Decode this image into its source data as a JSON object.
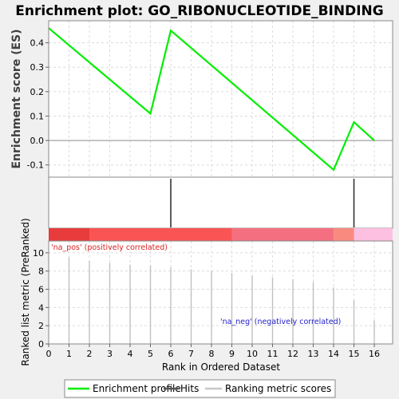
{
  "chart_data": {
    "type": "line",
    "title": "Enrichment plot: GO_RIBONUCLEOTIDE_BINDING",
    "es_panel": {
      "ylabel": "Enrichment score (ES)",
      "ylim": [
        -0.15,
        0.49
      ],
      "yticks": [
        -0.1,
        0.0,
        0.1,
        0.2,
        0.3,
        0.4
      ],
      "ytick_labels": [
        "-0.1",
        "0.0",
        "0.1",
        "0.2",
        "0.3",
        "0.4"
      ],
      "series": [
        {
          "name": "Enrichment profile",
          "color": "#00ee00",
          "x": [
            0,
            5,
            6,
            14,
            15,
            16
          ],
          "y": [
            0.46,
            0.11,
            0.45,
            -0.12,
            0.075,
            0.0
          ]
        }
      ]
    },
    "hits": [
      6,
      15
    ],
    "heatmap_segments": [
      {
        "x0": 0,
        "x1": 2,
        "color": "#e83c3c"
      },
      {
        "x0": 2,
        "x1": 9,
        "color": "#fb5454"
      },
      {
        "x0": 9,
        "x1": 14,
        "color": "#f47080"
      },
      {
        "x0": 14,
        "x1": 15,
        "color": "#f98a80"
      },
      {
        "x0": 15,
        "x1": 17,
        "color": "#fdc0e0"
      }
    ],
    "rank_panel": {
      "ylabel": "Ranked list metric (PreRanked)",
      "ylim": [
        0,
        11.3
      ],
      "yticks": [
        0,
        2,
        4,
        6,
        8,
        10
      ],
      "ytick_labels": [
        "0",
        "2",
        "4",
        "6",
        "8",
        "10"
      ],
      "x": [
        1,
        2,
        3,
        4,
        5,
        6,
        7,
        8,
        9,
        10,
        11,
        12,
        13,
        14,
        15,
        16
      ],
      "values": [
        9.5,
        9.1,
        8.9,
        8.7,
        8.6,
        8.4,
        8.2,
        8.0,
        7.8,
        7.5,
        7.3,
        7.1,
        6.8,
        6.2,
        4.8,
        2.6
      ],
      "pos_label": "'na_pos' (positively correlated)",
      "neg_label": "'na_neg' (negatively correlated)"
    },
    "xlabel": "Rank in Ordered Dataset",
    "xlim": [
      0,
      16.9
    ],
    "xticks": [
      0,
      1,
      2,
      3,
      4,
      5,
      6,
      7,
      8,
      9,
      10,
      11,
      12,
      13,
      14,
      15,
      16
    ],
    "xtick_labels": [
      "0",
      "1",
      "2",
      "3",
      "4",
      "5",
      "6",
      "7",
      "8",
      "9",
      "10",
      "11",
      "12",
      "13",
      "14",
      "15",
      "16"
    ],
    "legend": {
      "placement": "bottom",
      "entries": [
        {
          "label": "Enrichment profile",
          "color": "#00ee00"
        },
        {
          "label": "Hits",
          "color": "#555555"
        },
        {
          "label": "Ranking metric scores",
          "color": "#c8c8c8"
        }
      ]
    },
    "colors": {
      "profile": "#00ee00",
      "hit": "#333333",
      "rank_bar": "#c0c0c0",
      "grid": "#dcdcdc",
      "pos_label": "#dd2222",
      "neg_label": "#2222cc"
    }
  }
}
